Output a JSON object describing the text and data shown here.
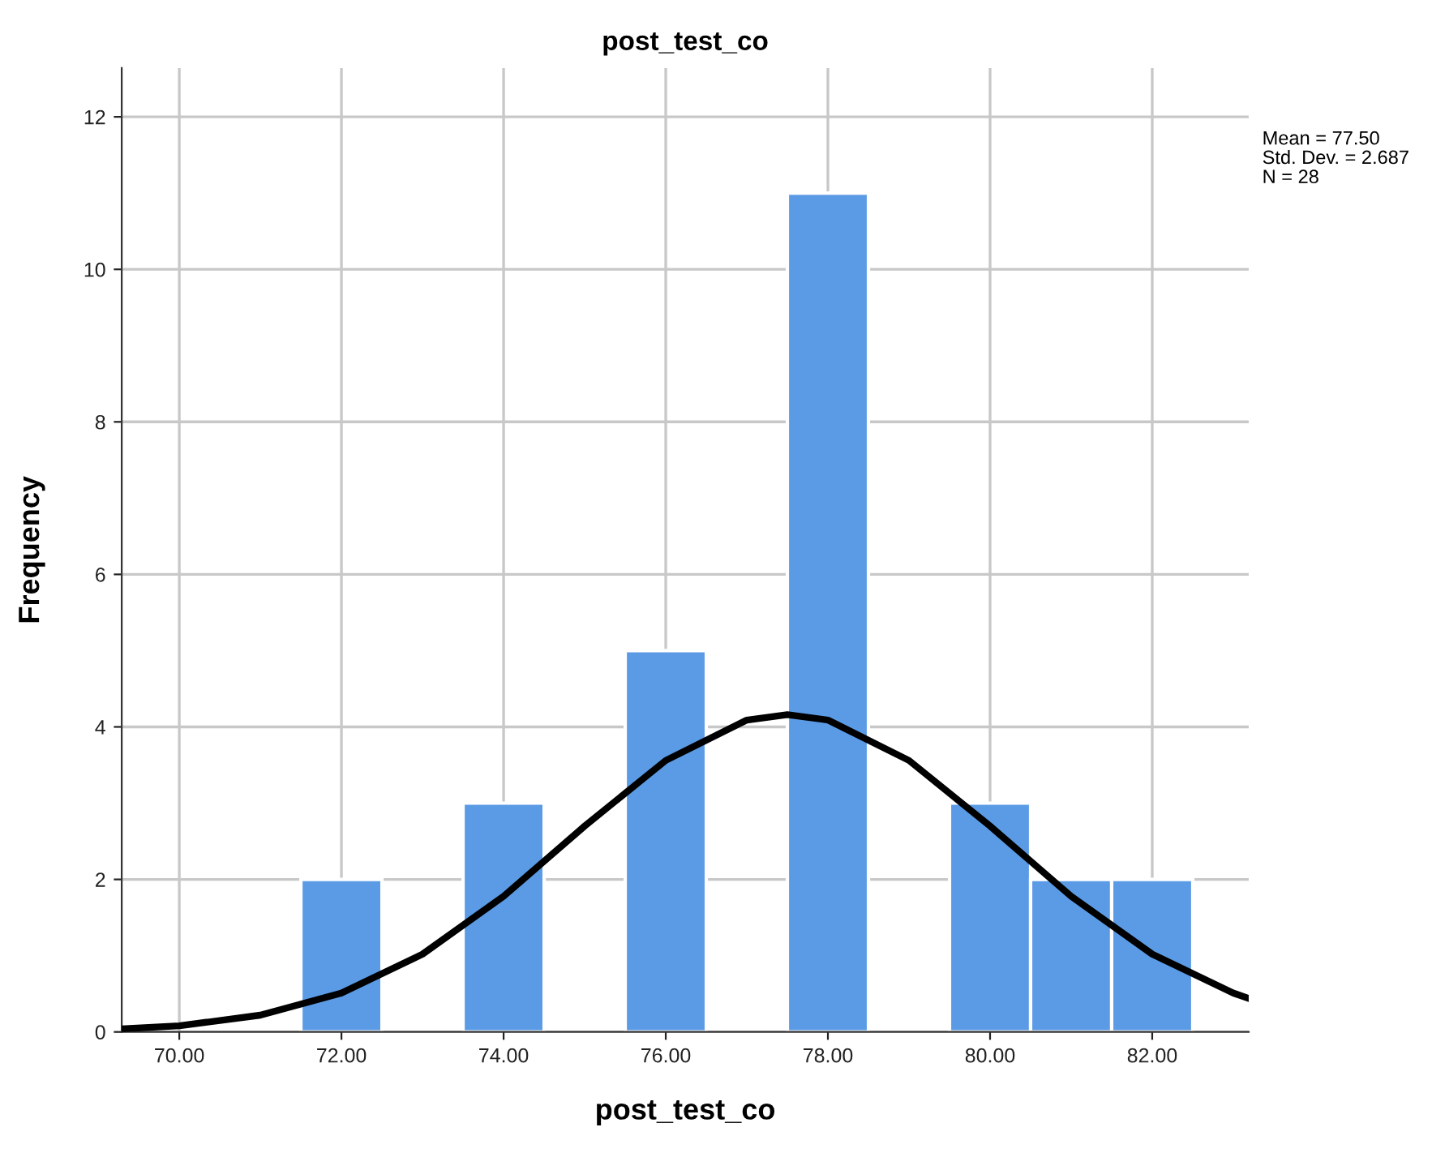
{
  "chart_data": {
    "type": "histogram",
    "title": "post_test_co",
    "xlabel": "post_test_co",
    "ylabel": "Frequency",
    "bins": [
      71.5,
      72.5,
      73.5,
      74.5,
      75.5,
      76.5,
      77.5,
      78.5,
      79.5,
      80.5,
      81.5,
      82.5
    ],
    "series": [
      {
        "color": "#5b9be6",
        "values": [
          2,
          0,
          3,
          0,
          5,
          0,
          11,
          0,
          3,
          2,
          2
        ]
      },
      {
        "type": "line",
        "color": "#000000",
        "x": [
          69.29,
          70,
          71,
          72,
          73,
          74,
          75,
          76,
          77,
          77.5,
          78,
          79,
          80,
          81,
          82,
          83,
          83.19
        ],
        "values": [
          0.04,
          0.08,
          0.22,
          0.51,
          1.02,
          1.78,
          2.7,
          3.56,
          4.09,
          4.16,
          4.09,
          3.56,
          2.7,
          1.78,
          1.02,
          0.51,
          0.44
        ]
      }
    ],
    "xlim": [
      69.29,
      83.19
    ],
    "ylim": [
      0,
      12.64
    ],
    "xticks": [
      {
        "value": 70,
        "label": "70.00"
      },
      {
        "value": 72,
        "label": "72.00"
      },
      {
        "value": 74,
        "label": "74.00"
      },
      {
        "value": 76,
        "label": "76.00"
      },
      {
        "value": 78,
        "label": "78.00"
      },
      {
        "value": 80,
        "label": "80.00"
      },
      {
        "value": 82,
        "label": "82.00"
      }
    ],
    "yticks": [
      0,
      2,
      4,
      6,
      8,
      10,
      12
    ],
    "grid": true,
    "marker": "none",
    "line_style": "solid",
    "annotations": [
      "Mean = 77.50",
      "Std. Dev. = 2.687",
      "N = 28"
    ]
  }
}
